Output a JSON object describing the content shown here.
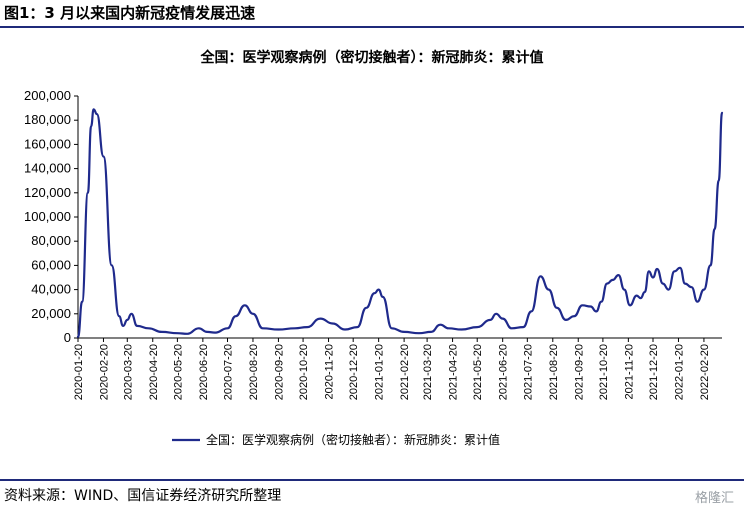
{
  "figure_title": "图1：3 月以来国内新冠疫情发展迅速",
  "source": "资料来源：WIND、国信证券经济研究所整理",
  "watermark": "格隆汇",
  "chart_data": {
    "type": "line",
    "title": "全国：医学观察病例（密切接触者）：新冠肺炎：累计值",
    "xlabel": "",
    "ylabel": "",
    "ylim": [
      0,
      200000
    ],
    "yticks": [
      "0",
      "20,000",
      "40,000",
      "60,000",
      "80,000",
      "100,000",
      "120,000",
      "140,000",
      "160,000",
      "180,000",
      "200,000"
    ],
    "xticks": [
      "2020-01-20",
      "2020-02-20",
      "2020-03-20",
      "2020-04-20",
      "2020-05-20",
      "2020-06-20",
      "2020-07-20",
      "2020-08-20",
      "2020-09-20",
      "2020-10-20",
      "2020-11-20",
      "2020-12-20",
      "2021-01-20",
      "2021-02-20",
      "2021-03-20",
      "2021-04-20",
      "2021-05-20",
      "2021-06-20",
      "2021-07-20",
      "2021-08-20",
      "2021-09-20",
      "2021-10-20",
      "2021-11-20",
      "2021-12-20",
      "2022-01-20",
      "2022-02-20"
    ],
    "legend": "bottom",
    "color": "#1f2a8c",
    "series": [
      {
        "name": "全国：医学观察病例（密切接触者）：新冠肺炎：累计值",
        "x": [
          "2020-01-20",
          "2020-01-25",
          "2020-02-01",
          "2020-02-05",
          "2020-02-08",
          "2020-02-12",
          "2020-02-20",
          "2020-03-01",
          "2020-03-10",
          "2020-03-15",
          "2020-03-20",
          "2020-03-25",
          "2020-04-01",
          "2020-04-15",
          "2020-05-01",
          "2020-05-20",
          "2020-06-01",
          "2020-06-15",
          "2020-06-25",
          "2020-07-05",
          "2020-07-20",
          "2020-07-30",
          "2020-08-10",
          "2020-08-20",
          "2020-09-01",
          "2020-09-20",
          "2020-10-10",
          "2020-10-25",
          "2020-11-10",
          "2020-11-25",
          "2020-12-10",
          "2020-12-25",
          "2021-01-05",
          "2021-01-15",
          "2021-01-20",
          "2021-01-25",
          "2021-02-05",
          "2021-02-20",
          "2021-03-10",
          "2021-03-25",
          "2021-04-05",
          "2021-04-15",
          "2021-05-01",
          "2021-05-20",
          "2021-06-05",
          "2021-06-12",
          "2021-06-20",
          "2021-07-01",
          "2021-07-15",
          "2021-07-25",
          "2021-08-05",
          "2021-08-15",
          "2021-08-25",
          "2021-09-05",
          "2021-09-15",
          "2021-09-25",
          "2021-10-05",
          "2021-10-12",
          "2021-10-18",
          "2021-10-25",
          "2021-11-01",
          "2021-11-08",
          "2021-11-15",
          "2021-11-22",
          "2021-11-30",
          "2021-12-05",
          "2021-12-10",
          "2021-12-15",
          "2021-12-20",
          "2021-12-25",
          "2022-01-01",
          "2022-01-08",
          "2022-01-15",
          "2022-01-22",
          "2022-01-28",
          "2022-02-05",
          "2022-02-12",
          "2022-02-20",
          "2022-02-28",
          "2022-03-05",
          "2022-03-10",
          "2022-03-14"
        ],
        "values": [
          1000,
          30000,
          120000,
          175000,
          189000,
          185000,
          150000,
          60000,
          18000,
          10000,
          15000,
          20000,
          10000,
          8000,
          5000,
          4000,
          3500,
          8000,
          5000,
          4500,
          8000,
          18000,
          27000,
          20000,
          8000,
          7000,
          8000,
          9000,
          16000,
          12000,
          7000,
          9000,
          25000,
          37000,
          40000,
          34000,
          8000,
          5000,
          4000,
          5000,
          11000,
          8000,
          7000,
          9000,
          15000,
          20000,
          16000,
          8000,
          9000,
          22000,
          51000,
          40000,
          25000,
          15000,
          18000,
          27000,
          26000,
          22000,
          30000,
          45000,
          48000,
          52000,
          40000,
          27000,
          35000,
          33000,
          38000,
          55000,
          50000,
          57000,
          45000,
          40000,
          55000,
          58000,
          45000,
          42000,
          30000,
          40000,
          60000,
          90000,
          130000,
          186000
        ]
      }
    ]
  }
}
